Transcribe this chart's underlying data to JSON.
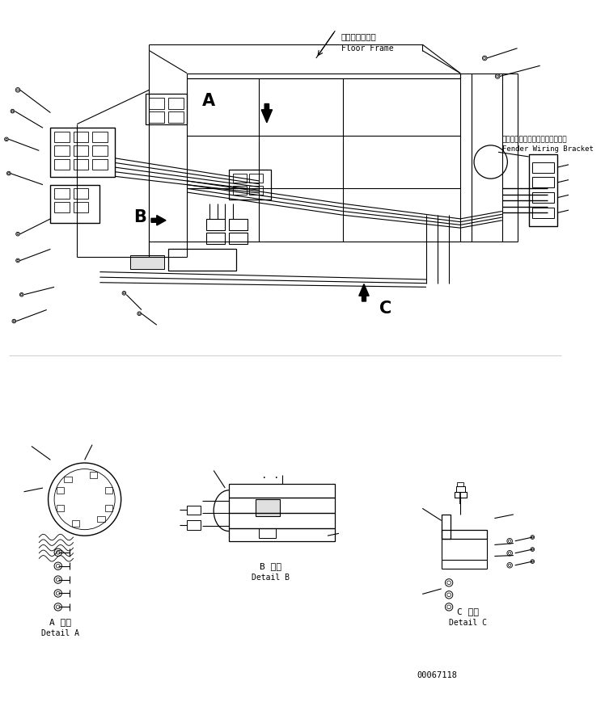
{
  "bg_color": "#ffffff",
  "line_color": "#000000",
  "fig_width": 7.48,
  "fig_height": 8.74,
  "dpi": 100,
  "labels": {
    "floor_frame_jp": "フロアフレーム",
    "floor_frame_en": "Floor Frame",
    "fender_jp": "フェンダワイヤリングブラケット",
    "fender_en": "Fender Wiring Bracket",
    "detail_a_jp": "A 詳細",
    "detail_a_en": "Detail A",
    "detail_b_jp": "B 詳細",
    "detail_b_en": "Detail B",
    "detail_c_jp": "C 詳細",
    "detail_c_en": "Detail C",
    "part_number": "00067118"
  }
}
